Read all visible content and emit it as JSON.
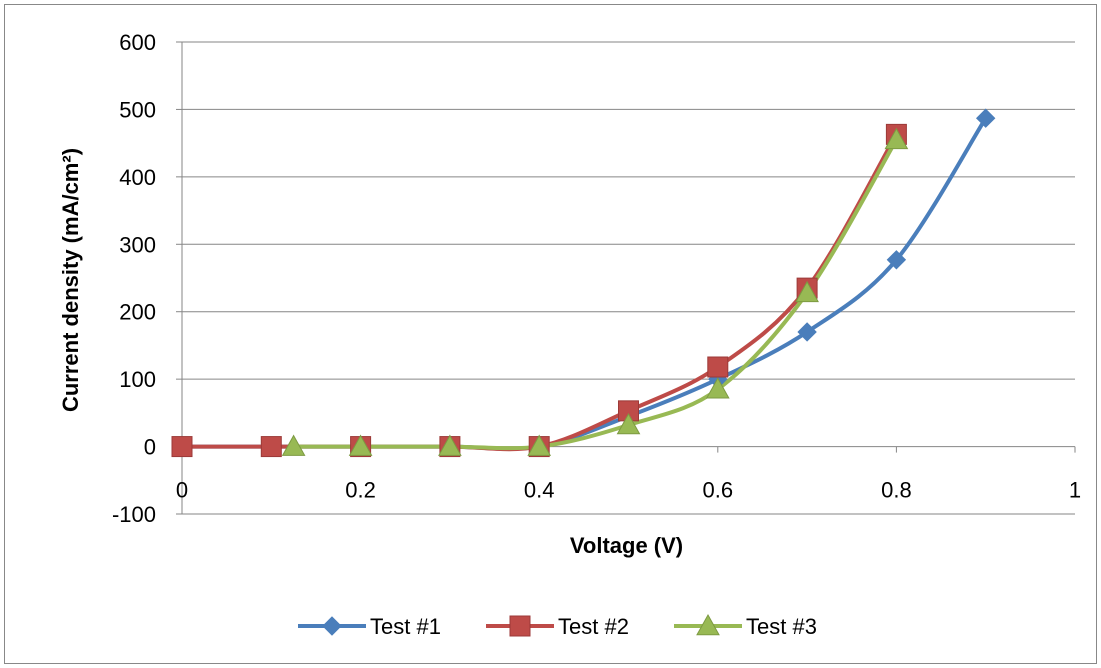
{
  "chart_data": {
    "type": "line",
    "title": "",
    "xlabel": "Voltage (V)",
    "ylabel": "Current density (mA/cm²)",
    "xlim": [
      0,
      1
    ],
    "ylim": [
      -100,
      600
    ],
    "x_ticks": [
      {
        "value": 0,
        "label": "0"
      },
      {
        "value": 0.2,
        "label": "0.2"
      },
      {
        "value": 0.4,
        "label": "0.4"
      },
      {
        "value": 0.6,
        "label": "0.6"
      },
      {
        "value": 0.8,
        "label": "0.8"
      },
      {
        "value": 1,
        "label": "1"
      }
    ],
    "y_ticks": [
      {
        "value": -100,
        "label": "-100"
      },
      {
        "value": 0,
        "label": "0"
      },
      {
        "value": 100,
        "label": "100"
      },
      {
        "value": 200,
        "label": "200"
      },
      {
        "value": 300,
        "label": "300"
      },
      {
        "value": 400,
        "label": "400"
      },
      {
        "value": 500,
        "label": "500"
      },
      {
        "value": 600,
        "label": "600"
      }
    ],
    "grid": "horizontal",
    "legend_position": "bottom",
    "series": [
      {
        "name": "Test #1",
        "color": "#4a7ebb",
        "marker": "diamond",
        "x": [
          0,
          0.1,
          0.2,
          0.3,
          0.4,
          0.5,
          0.6,
          0.7,
          0.8,
          0.9
        ],
        "y": [
          0,
          0,
          0,
          0,
          0,
          45,
          100,
          170,
          277,
          487
        ]
      },
      {
        "name": "Test #2",
        "color": "#be4b48",
        "marker": "square",
        "x": [
          0,
          0.1,
          0.2,
          0.3,
          0.4,
          0.5,
          0.6,
          0.7,
          0.8
        ],
        "y": [
          0,
          0,
          0,
          0,
          0,
          53,
          118,
          235,
          463
        ]
      },
      {
        "name": "Test #3",
        "color": "#98b954",
        "marker": "triangle",
        "x": [
          0.125,
          0.2,
          0.3,
          0.4,
          0.5,
          0.6,
          0.7,
          0.8
        ],
        "y": [
          0,
          0,
          0,
          0,
          32,
          85,
          228,
          455
        ]
      }
    ]
  }
}
